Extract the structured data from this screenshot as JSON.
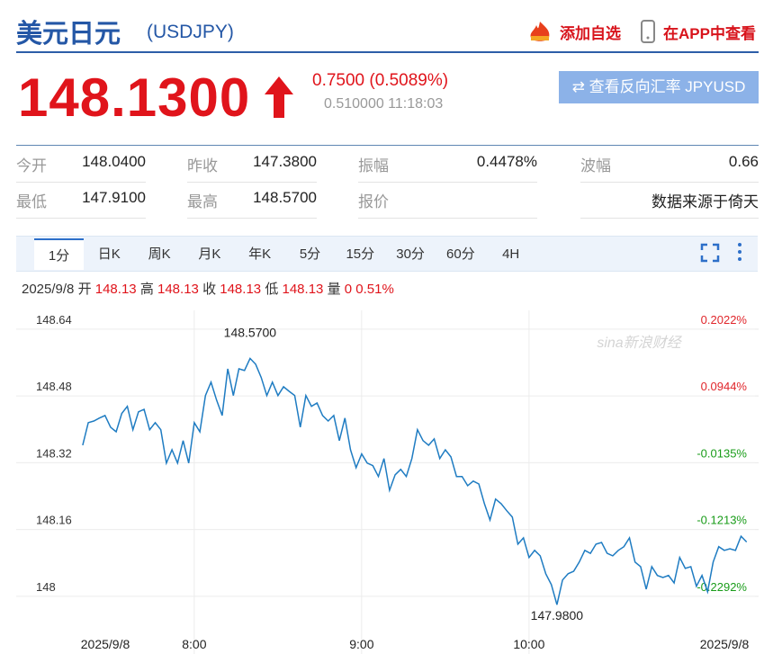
{
  "header": {
    "title": "美元日元",
    "code": "(USDJPY)",
    "actions": [
      "添加自选",
      "在APP中查看"
    ]
  },
  "quote": {
    "price": "148.1300",
    "change": "0.7500 (0.5089%)",
    "sub": "0.510000 11:18:03",
    "reverse_button": "查看反向汇率 JPYUSD"
  },
  "stats": [
    [
      {
        "label": "今开",
        "value": "148.0400"
      },
      {
        "label": "昨收",
        "value": "147.3800"
      },
      {
        "label": "振幅",
        "value": "0.4478%"
      },
      {
        "label": "波幅",
        "value": "0.66"
      }
    ],
    [
      {
        "label": "最低",
        "value": "147.9100"
      },
      {
        "label": "最高",
        "value": "148.5700"
      },
      {
        "label": "报价"
      },
      {
        "value": "数据来源于倚天"
      }
    ]
  ],
  "tabs": [
    "1分",
    "日K",
    "周K",
    "月K",
    "年K",
    "5分",
    "15分",
    "30分",
    "60分",
    "4H"
  ],
  "active_tab": 0,
  "info": {
    "date": "2025/9/8",
    "items": [
      {
        "label": "开",
        "value": "148.13"
      },
      {
        "label": "高",
        "value": "148.13"
      },
      {
        "label": "收",
        "value": "148.13"
      },
      {
        "label": "低",
        "value": "148.13"
      },
      {
        "label": "量",
        "value": "0"
      }
    ],
    "change": "0.51%"
  },
  "chart_data": {
    "type": "line",
    "color": "#1f7cc2",
    "grid": true,
    "watermark": "sina新浪财经",
    "x": [
      440,
      442,
      444,
      446,
      448,
      450,
      452,
      454,
      456,
      458,
      460,
      462,
      464,
      466,
      468,
      470,
      472,
      474,
      476,
      478,
      480,
      482,
      484,
      486,
      488,
      490,
      492,
      494,
      496,
      498,
      500,
      502,
      504,
      506,
      508,
      510,
      512,
      514,
      516,
      518,
      520,
      522,
      524,
      526,
      528,
      530,
      532,
      534,
      536,
      538,
      540,
      542,
      544,
      546,
      548,
      550,
      552,
      554,
      556,
      558,
      560,
      562,
      564,
      566,
      568,
      570,
      572,
      574,
      576,
      578,
      580,
      582,
      584,
      586,
      588,
      590,
      592,
      594,
      596,
      598,
      600,
      602,
      604,
      606,
      608,
      610,
      612,
      614,
      616,
      618,
      620,
      622,
      624,
      626,
      628,
      630,
      632,
      634,
      636,
      638,
      640,
      642,
      644,
      646,
      648,
      650,
      652,
      654,
      656,
      658,
      660,
      662,
      664,
      666,
      668,
      670,
      672,
      674,
      676,
      678
    ],
    "values": [
      148.362,
      148.416,
      148.42,
      148.427,
      148.433,
      148.405,
      148.394,
      148.438,
      148.455,
      148.399,
      148.442,
      148.448,
      148.399,
      148.416,
      148.399,
      148.319,
      148.351,
      148.319,
      148.373,
      148.319,
      148.416,
      148.394,
      148.481,
      148.513,
      148.47,
      148.433,
      148.545,
      148.481,
      148.545,
      148.541,
      148.57,
      148.556,
      148.524,
      148.481,
      148.513,
      148.481,
      148.502,
      148.491,
      148.481,
      148.405,
      148.481,
      148.455,
      148.463,
      148.433,
      148.42,
      148.433,
      148.373,
      148.427,
      148.351,
      148.308,
      148.341,
      148.319,
      148.313,
      148.287,
      148.33,
      148.254,
      148.291,
      148.304,
      148.287,
      148.33,
      148.399,
      148.373,
      148.362,
      148.377,
      148.33,
      148.351,
      148.334,
      148.287,
      148.287,
      148.265,
      148.276,
      148.269,
      148.222,
      148.183,
      148.233,
      148.222,
      148.205,
      148.19,
      148.125,
      148.14,
      148.093,
      148.11,
      148.097,
      148.054,
      148.028,
      147.98,
      148.039,
      148.054,
      148.06,
      148.082,
      148.11,
      148.103,
      148.125,
      148.129,
      148.103,
      148.097,
      148.11,
      148.119,
      148.14,
      148.082,
      148.071,
      148.017,
      148.071,
      148.05,
      148.045,
      148.05,
      148.032,
      148.093,
      148.067,
      148.071,
      148.024,
      148.05,
      148.011,
      148.082,
      148.119,
      148.11,
      148.114,
      148.11,
      148.144,
      148.13
    ],
    "xlim": [
      439.4,
      678.1
    ],
    "xticks": [
      {
        "value": 480,
        "label": "8:00"
      },
      {
        "value": 540,
        "label": "9:00"
      },
      {
        "value": 600,
        "label": "10:00"
      }
    ],
    "x_edge_labels": [
      "2025/9/8",
      "2025/9/8"
    ],
    "ylim": [
      147.92,
      148.685
    ],
    "yticks": [
      148.64,
      148.48,
      148.32,
      148.16,
      148
    ],
    "y2lim": [
      -0.2831,
      0.2326
    ],
    "y2ticks": [
      {
        "value": 0.2022,
        "label": "0.2022%"
      },
      {
        "value": 0.0944,
        "label": "0.0944%"
      },
      {
        "value": -0.0135,
        "label": "-0.0135%"
      },
      {
        "value": -0.1213,
        "label": "-0.1213%"
      },
      {
        "value": -0.2292,
        "label": "-0.2292%"
      }
    ],
    "y2_colors": {
      "positive": "#e0262b",
      "negative": "#1a9c1a"
    },
    "annotations": [
      {
        "text": "148.5700",
        "x": 500,
        "y": 148.57
      },
      {
        "text": "147.9800",
        "x": 610,
        "y": 147.98
      }
    ]
  }
}
